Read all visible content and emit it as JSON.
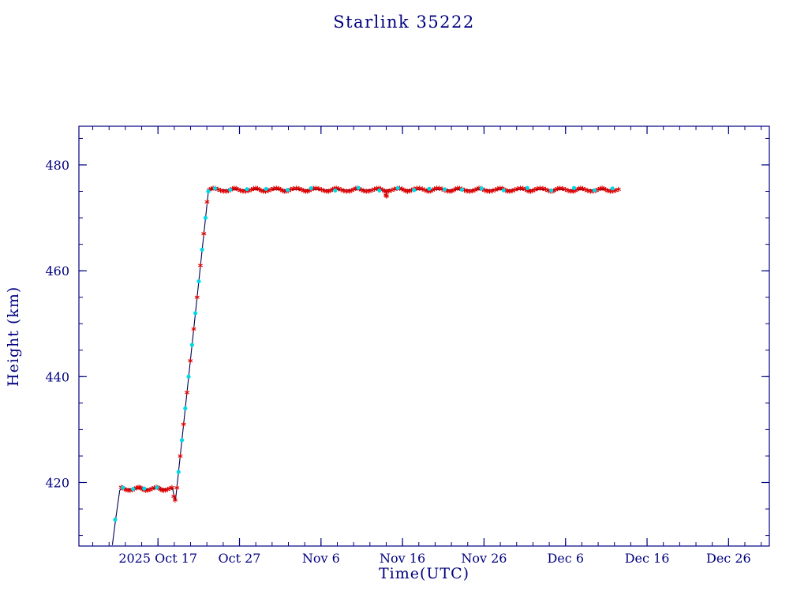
{
  "page": {
    "background": "#ffffff"
  },
  "chart_data": {
    "type": "line",
    "title": "Starlink 35222",
    "xlabel": "Time(UTC)",
    "ylabel": "Height (km)",
    "frame_color": "#000080",
    "legend": "none",
    "grid": false,
    "x_axis": {
      "tick_labels": [
        "2025 Oct 17",
        "Oct 27",
        "Nov 6",
        "Nov 16",
        "Nov 26",
        "Dec 6",
        "Dec 16",
        "Dec 26"
      ],
      "tick_days": [
        0,
        10,
        20,
        30,
        40,
        50,
        60,
        70
      ],
      "domain_days": [
        -9.7,
        75
      ],
      "minor_tick_step_days": 2
    },
    "y_axis": {
      "ticks": [
        420,
        440,
        460,
        480
      ],
      "domain": [
        408,
        487.3
      ],
      "minor_tick_step": 5,
      "unit": "km"
    },
    "line": {
      "color": "#000050",
      "vertices": [
        [
          -5.6,
          408.2
        ],
        [
          -5.2,
          413.0
        ],
        [
          -4.7,
          418.5
        ],
        [
          -4.5,
          418.8
        ],
        [
          1.8,
          418.8
        ],
        [
          2.0,
          417.3
        ],
        [
          2.15,
          416.6
        ],
        [
          6.2,
          475.3
        ],
        [
          27.9,
          475.3
        ],
        [
          28.0,
          474.2
        ],
        [
          28.15,
          475.3
        ],
        [
          56.6,
          475.3
        ]
      ]
    },
    "markers": {
      "red": {
        "symbol": "asterisk",
        "color": "#dd0000",
        "runs": [
          [
            -4.5,
            1.8,
            0.22,
            418.8,
            0.3
          ],
          [
            6.3,
            56.5,
            0.28,
            475.3,
            0.3
          ]
        ],
        "points": [
          [
            1.95,
            417.4
          ],
          [
            2.1,
            416.7
          ],
          [
            2.32,
            419.0
          ],
          [
            2.73,
            425.0
          ],
          [
            3.14,
            431.0
          ],
          [
            3.56,
            437.0
          ],
          [
            3.97,
            443.0
          ],
          [
            4.39,
            449.0
          ],
          [
            4.8,
            455.0
          ],
          [
            5.21,
            461.0
          ],
          [
            5.62,
            467.0
          ],
          [
            6.03,
            473.0
          ],
          [
            27.95,
            474.3
          ],
          [
            28.05,
            474.1
          ]
        ]
      },
      "cyan": {
        "symbol": "dot",
        "color": "#00d8e6",
        "runs": [
          [
            -4.3,
            1.5,
            1.6,
            418.9,
            0.15
          ],
          [
            7.0,
            55.9,
            2.4,
            475.4,
            0.25
          ]
        ],
        "points": [
          [
            -5.25,
            413.0
          ],
          [
            2.52,
            422.0
          ],
          [
            2.94,
            428.0
          ],
          [
            3.35,
            434.0
          ],
          [
            3.76,
            440.0
          ],
          [
            4.18,
            446.0
          ],
          [
            4.59,
            452.0
          ],
          [
            5.01,
            458.0
          ],
          [
            5.41,
            464.0
          ],
          [
            5.83,
            470.0
          ],
          [
            6.17,
            475.0
          ]
        ]
      }
    }
  }
}
